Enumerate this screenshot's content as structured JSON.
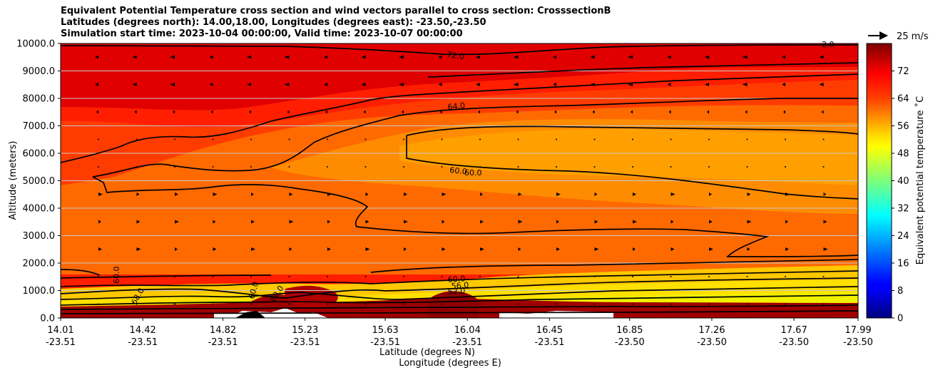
{
  "title_lines": [
    "Equivalent Potential Temperature cross section and wind vectors parallel to cross section: CrosssectionB",
    "Latitudes (degrees north): 14.00,18.00, Longitudes (degrees east): -23.50,-23.50",
    "Simulation start time: 2023-10-04 00:00:00, Valid time: 2023-10-07 00:00:00"
  ],
  "chart_data": {
    "type": "heatmap",
    "ylabel": "Altitude (meters)",
    "xlabel_line1": "Latitude (degrees N)",
    "xlabel_line2": "Longitude (degrees E)",
    "ylim": [
      0,
      10000
    ],
    "y_ticks": [
      "0.0",
      "1000.0",
      "2000.0",
      "3000.0",
      "4000.0",
      "5000.0",
      "6000.0",
      "7000.0",
      "8000.0",
      "9000.0",
      "10000.0"
    ],
    "x_ticks": [
      {
        "lat": "14.01",
        "lon": "-23.51"
      },
      {
        "lat": "14.42",
        "lon": "-23.51"
      },
      {
        "lat": "14.82",
        "lon": "-23.51"
      },
      {
        "lat": "15.23",
        "lon": "-23.51"
      },
      {
        "lat": "15.63",
        "lon": "-23.51"
      },
      {
        "lat": "16.04",
        "lon": "-23.51"
      },
      {
        "lat": "16.45",
        "lon": "-23.51"
      },
      {
        "lat": "16.85",
        "lon": "-23.50"
      },
      {
        "lat": "17.26",
        "lon": "-23.50"
      },
      {
        "lat": "17.67",
        "lon": "-23.50"
      },
      {
        "lat": "17.99",
        "lon": "-23.50"
      }
    ],
    "x_range_lat": [
      14.01,
      17.99
    ],
    "horizontal_grid": true,
    "colorbar": {
      "label": "Equivalent potential temperature ˚C",
      "range": [
        0,
        80
      ],
      "ticks": [
        0,
        8,
        16,
        24,
        32,
        40,
        48,
        56,
        64,
        72
      ],
      "colormap": "jet"
    },
    "quiver_key": {
      "label": "25 m/s",
      "speed": 25
    },
    "contour_labels": [
      "72.0",
      "64.0",
      "60.0",
      "60.0",
      "60.0",
      "56.0",
      "52.0",
      "60.0",
      "60.0",
      "60.0",
      "68.0",
      "2.0"
    ],
    "field_summary": {
      "surface_layer_0_500m": 80,
      "low_layer_500_1500m": 50,
      "mid_layer_3000_7000m_south": 66,
      "mid_layer_3000_7000m_north": 58,
      "upper_layer_8000_10000m": 72
    }
  }
}
